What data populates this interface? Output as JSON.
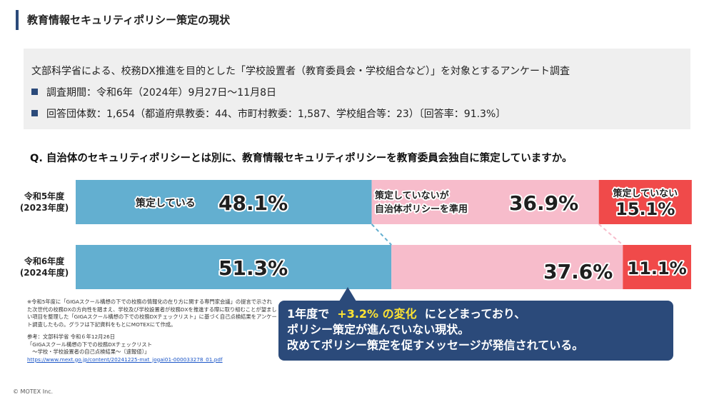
{
  "title": "教育情報セキュリティポリシー策定の現状",
  "info": {
    "line1": "文部科学省による、校務DX推進を目的とした「学校設置者（教育委員会・学校組合など）」を対象とするアンケート調査",
    "line2": "調査期間：令和6年（2024年）9月27日～11月8日",
    "line3": "回答団体数：1,654（都道府県教委：44、市町村教委：1,587、学校組合等：23）〔回答率：91.3%〕"
  },
  "question": "Q. 自治体のセキュリティポリシーとは別に、教育情報セキュリティポリシーを教育委員会独自に策定していますか。",
  "chart_data": {
    "type": "bar",
    "stacked": true,
    "orientation": "horizontal",
    "categories": [
      "令和5年度\n(2023年度)",
      "令和6年度\n(2024年度)"
    ],
    "series": [
      {
        "name": "策定している",
        "values": [
          48.1,
          51.3
        ],
        "color": "#63afd0"
      },
      {
        "name": "策定していないが\n自治体ポリシーを準用",
        "values": [
          36.9,
          37.6
        ],
        "color": "#f7bccb"
      },
      {
        "name": "策定していない",
        "values": [
          15.1,
          11.1
        ],
        "color": "#f04a4a"
      }
    ],
    "value_labels": [
      [
        "48.1%",
        "36.9%",
        "15.1%"
      ],
      [
        "51.3%",
        "37.6%",
        "11.1%"
      ]
    ],
    "xlim": [
      0,
      100
    ]
  },
  "row_labels": [
    "令和5年度\n(2023年度)",
    "令和6年度\n(2024年度)"
  ],
  "note": "※令和5年度に「GIGAスクール構想の下での校務の情報化の在り方に関する専門家会議」の提言で示された次世代の校務DXの方向性を踏まえ、学校及び学校設置者が校務DXを推進する際に取り組むことが望ましい項目を整理した「GIGAスクール構想の下での校務DXチェックリスト」に基づく自己点検結果をアンケート調査したもの。グラフは下記資料をもとにMOTEXにて作成。",
  "reference": "参考：文部科学省 令和６年12月26日\n「GIGAスクール構想の下での校務DXチェックリスト\n　～学校・学校設置者の自己点検結果～〔速報値〕」",
  "reference_url": "https://www.mext.go.jp/content/20241225-mxt_jogai01-000033278_01.pdf",
  "callout": {
    "line1_pre": "1年度で",
    "line1_highlight": "+3.2% の変化",
    "line1_post": "にとどまっており、",
    "line2": "ポリシー策定が進んでいない現状。",
    "line3": "改めてポリシー策定を促すメッセージが発信されている。"
  },
  "copyright": "© MOTEX Inc."
}
